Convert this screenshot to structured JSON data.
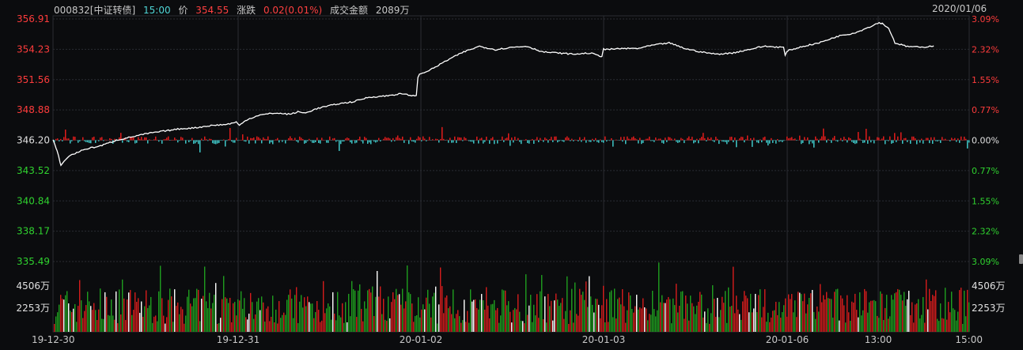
{
  "header": {
    "code_name": "000832[中证转债]",
    "time": "15:00",
    "price_label": "价",
    "price": "354.55",
    "change_label": "涨跌",
    "change": "0.02(0.01%)",
    "amount_label": "成交金额",
    "amount": "2089万",
    "date": "2020/01/06"
  },
  "colors": {
    "background": "#0b0c0e",
    "grid": "#2b2d33",
    "up": "#e01b1b",
    "down": "#3fc8c8",
    "line": "#ffffff",
    "vol_up": "#d41c1c",
    "vol_down": "#1f9e1f",
    "axis_red": "#ff3c3c",
    "axis_green": "#2fd22f",
    "axis_white": "#e0e0e0"
  },
  "chart_data": {
    "type": "line",
    "title": "000832[中证转债]",
    "base_price": 346.2,
    "y_left_ticks": [
      "356.91",
      "354.23",
      "351.56",
      "348.88",
      "346.20",
      "343.52",
      "340.84",
      "338.17",
      "335.49"
    ],
    "y_right_ticks": [
      "3.09%",
      "2.32%",
      "1.55%",
      "0.77%",
      "0.00%",
      "0.77%",
      "1.55%",
      "2.32%",
      "3.09%"
    ],
    "ylim": [
      335.49,
      356.91
    ],
    "x_tick_labels": [
      "19-12-30",
      "19-12-31",
      "20-01-02",
      "20-01-03",
      "20-01-06",
      "13:00",
      "15:00"
    ],
    "volume_ticks": [
      "4506万",
      "2253万"
    ],
    "volume_max": 6759,
    "price_series_x": [
      0,
      5,
      10,
      20,
      40,
      60,
      80,
      100,
      120,
      140,
      160,
      180,
      200,
      220,
      232,
      236,
      245,
      260,
      280,
      300,
      310,
      320,
      330,
      340,
      360,
      380,
      400,
      420,
      440,
      460,
      462,
      464,
      480,
      500,
      520,
      540,
      560,
      580,
      600,
      620,
      640,
      660,
      680,
      695,
      697,
      699,
      720,
      740,
      760,
      780,
      800,
      820,
      840,
      860,
      880,
      900,
      925,
      927,
      930,
      950,
      970,
      990,
      1000,
      1010,
      1020,
      1030,
      1040,
      1046,
      1050,
      1058,
      1066,
      1080,
      1100,
      1115
    ],
    "price_series_y": [
      346.2,
      345.3,
      344.0,
      344.8,
      345.4,
      345.7,
      346.2,
      346.5,
      346.8,
      347.0,
      347.2,
      347.3,
      347.5,
      347.6,
      347.8,
      347.5,
      348.0,
      348.4,
      348.6,
      348.5,
      348.7,
      348.6,
      348.9,
      349.1,
      349.4,
      349.6,
      350.0,
      350.1,
      350.3,
      350.1,
      351.8,
      352.0,
      352.5,
      353.3,
      354.0,
      354.5,
      354.2,
      354.4,
      354.5,
      354.0,
      353.9,
      353.8,
      353.9,
      353.6,
      354.3,
      354.2,
      354.3,
      354.3,
      354.6,
      354.8,
      354.3,
      354.0,
      353.8,
      353.9,
      354.2,
      354.5,
      354.4,
      353.7,
      354.1,
      354.5,
      354.8,
      355.3,
      355.5,
      355.6,
      355.8,
      356.1,
      356.4,
      356.6,
      356.5,
      356.1,
      354.8,
      354.5,
      354.4,
      354.55
    ],
    "x_span": 1160
  }
}
